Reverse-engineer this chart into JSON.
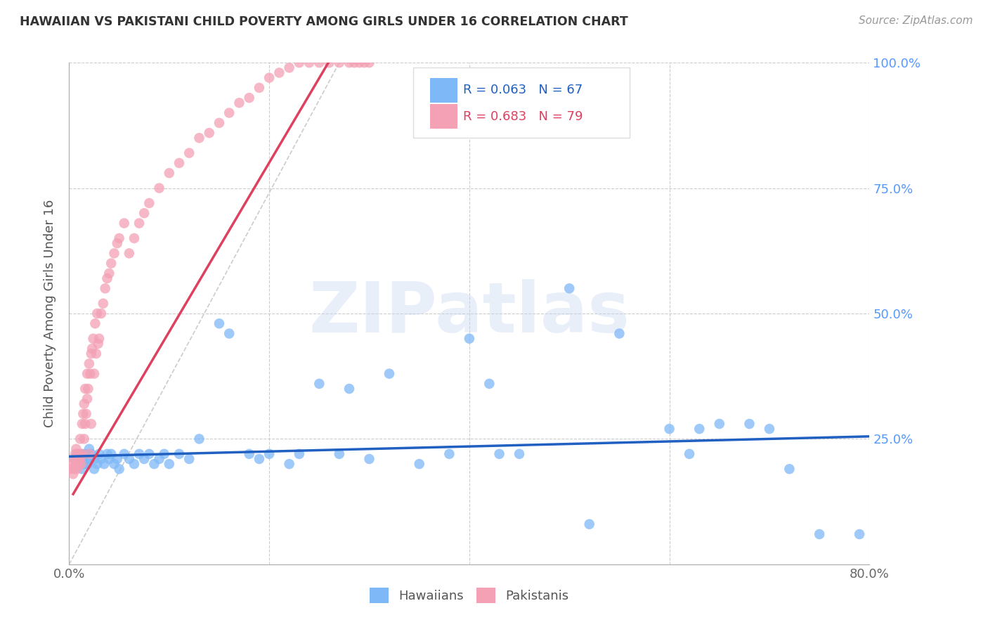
{
  "title": "HAWAIIAN VS PAKISTANI CHILD POVERTY AMONG GIRLS UNDER 16 CORRELATION CHART",
  "source": "Source: ZipAtlas.com",
  "ylabel": "Child Poverty Among Girls Under 16",
  "watermark": "ZIPatlas",
  "xlim": [
    0.0,
    0.8
  ],
  "ylim": [
    0.0,
    1.0
  ],
  "hawaiians_R": 0.063,
  "hawaiians_N": 67,
  "pakistanis_R": 0.683,
  "pakistanis_N": 79,
  "hawaiian_color": "#7eb8f7",
  "pakistani_color": "#f4a0b5",
  "hawaiian_line_color": "#2060c0",
  "pakistani_line_color": "#e04060",
  "background_color": "#ffffff",
  "grid_color": "#cccccc",
  "title_color": "#333333",
  "right_axis_label_color": "#5599ff",
  "hawaiians_x": [
    0.005,
    0.008,
    0.01,
    0.012,
    0.013,
    0.014,
    0.015,
    0.016,
    0.018,
    0.019,
    0.02,
    0.022,
    0.025,
    0.025,
    0.028,
    0.03,
    0.032,
    0.035,
    0.038,
    0.04,
    0.042,
    0.045,
    0.048,
    0.05,
    0.055,
    0.06,
    0.065,
    0.07,
    0.075,
    0.08,
    0.085,
    0.09,
    0.095,
    0.1,
    0.11,
    0.12,
    0.13,
    0.15,
    0.16,
    0.18,
    0.19,
    0.2,
    0.22,
    0.23,
    0.25,
    0.27,
    0.28,
    0.3,
    0.32,
    0.35,
    0.38,
    0.4,
    0.42,
    0.43,
    0.45,
    0.5,
    0.52,
    0.55,
    0.6,
    0.62,
    0.63,
    0.65,
    0.68,
    0.7,
    0.72,
    0.75,
    0.79
  ],
  "hawaiians_y": [
    0.21,
    0.22,
    0.2,
    0.22,
    0.19,
    0.21,
    0.2,
    0.22,
    0.21,
    0.2,
    0.23,
    0.22,
    0.21,
    0.19,
    0.2,
    0.22,
    0.21,
    0.2,
    0.22,
    0.21,
    0.22,
    0.2,
    0.21,
    0.19,
    0.22,
    0.21,
    0.2,
    0.22,
    0.21,
    0.22,
    0.2,
    0.21,
    0.22,
    0.2,
    0.22,
    0.21,
    0.25,
    0.48,
    0.46,
    0.22,
    0.21,
    0.22,
    0.2,
    0.22,
    0.36,
    0.22,
    0.35,
    0.21,
    0.38,
    0.2,
    0.22,
    0.45,
    0.36,
    0.22,
    0.22,
    0.55,
    0.08,
    0.46,
    0.27,
    0.22,
    0.27,
    0.28,
    0.28,
    0.27,
    0.19,
    0.06,
    0.06
  ],
  "pakistanis_x": [
    0.002,
    0.003,
    0.004,
    0.005,
    0.005,
    0.006,
    0.007,
    0.007,
    0.008,
    0.008,
    0.009,
    0.01,
    0.01,
    0.011,
    0.011,
    0.012,
    0.013,
    0.013,
    0.014,
    0.015,
    0.015,
    0.016,
    0.016,
    0.017,
    0.018,
    0.018,
    0.019,
    0.02,
    0.02,
    0.021,
    0.022,
    0.022,
    0.023,
    0.024,
    0.025,
    0.026,
    0.027,
    0.028,
    0.029,
    0.03,
    0.032,
    0.034,
    0.036,
    0.038,
    0.04,
    0.042,
    0.045,
    0.048,
    0.05,
    0.055,
    0.06,
    0.065,
    0.07,
    0.075,
    0.08,
    0.09,
    0.1,
    0.11,
    0.12,
    0.13,
    0.14,
    0.15,
    0.16,
    0.17,
    0.18,
    0.19,
    0.2,
    0.21,
    0.22,
    0.23,
    0.24,
    0.25,
    0.26,
    0.27,
    0.28,
    0.285,
    0.29,
    0.295,
    0.3
  ],
  "pakistanis_y": [
    0.19,
    0.2,
    0.18,
    0.21,
    0.19,
    0.22,
    0.2,
    0.23,
    0.19,
    0.22,
    0.21,
    0.2,
    0.22,
    0.21,
    0.25,
    0.2,
    0.28,
    0.22,
    0.3,
    0.25,
    0.32,
    0.28,
    0.35,
    0.3,
    0.33,
    0.38,
    0.35,
    0.4,
    0.22,
    0.38,
    0.42,
    0.28,
    0.43,
    0.45,
    0.38,
    0.48,
    0.42,
    0.5,
    0.44,
    0.45,
    0.5,
    0.52,
    0.55,
    0.57,
    0.58,
    0.6,
    0.62,
    0.64,
    0.65,
    0.68,
    0.62,
    0.65,
    0.68,
    0.7,
    0.72,
    0.75,
    0.78,
    0.8,
    0.82,
    0.85,
    0.86,
    0.88,
    0.9,
    0.92,
    0.93,
    0.95,
    0.97,
    0.98,
    0.99,
    1.0,
    1.0,
    1.0,
    1.0,
    1.0,
    1.0,
    1.0,
    1.0,
    1.0,
    1.0
  ],
  "hw_line_x0": 0.0,
  "hw_line_x1": 0.8,
  "hw_line_y0": 0.215,
  "hw_line_y1": 0.255,
  "pk_line_x0": 0.004,
  "pk_line_x1": 0.265,
  "pk_line_y0": 0.14,
  "pk_line_y1": 1.02
}
